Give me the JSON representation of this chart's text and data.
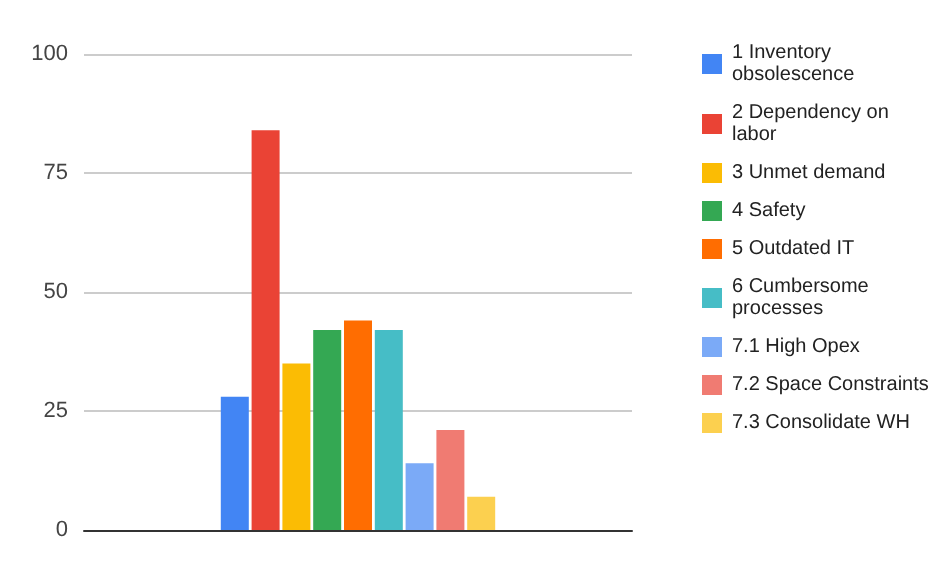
{
  "chart_data": {
    "type": "bar",
    "categories": [
      null
    ],
    "series": [
      {
        "name": "1 Inventory obsolescence",
        "color": "#4285f4",
        "values": [
          28
        ]
      },
      {
        "name": "2 Dependency on labor",
        "color": "#ea4335",
        "values": [
          84
        ]
      },
      {
        "name": "3 Unmet demand",
        "color": "#fbbc04",
        "values": [
          35
        ]
      },
      {
        "name": "4 Safety",
        "color": "#34a853",
        "values": [
          42
        ]
      },
      {
        "name": "5 Outdated IT",
        "color": "#ff6d01",
        "values": [
          44
        ]
      },
      {
        "name": "6 Cumbersome processes",
        "color": "#46bdc6",
        "values": [
          42
        ]
      },
      {
        "name": "7.1 High Opex",
        "color": "#7baaf7",
        "values": [
          14
        ]
      },
      {
        "name": "7.2 Space Constraints",
        "color": "#f07b72",
        "values": [
          21
        ]
      },
      {
        "name": "7.3 Consolidate WH",
        "color": "#fcd04f",
        "values": [
          7
        ]
      }
    ],
    "ylim": [
      0,
      100
    ],
    "yticks": [
      0,
      25,
      50,
      75,
      100
    ],
    "grid": "y",
    "legend": "right"
  }
}
